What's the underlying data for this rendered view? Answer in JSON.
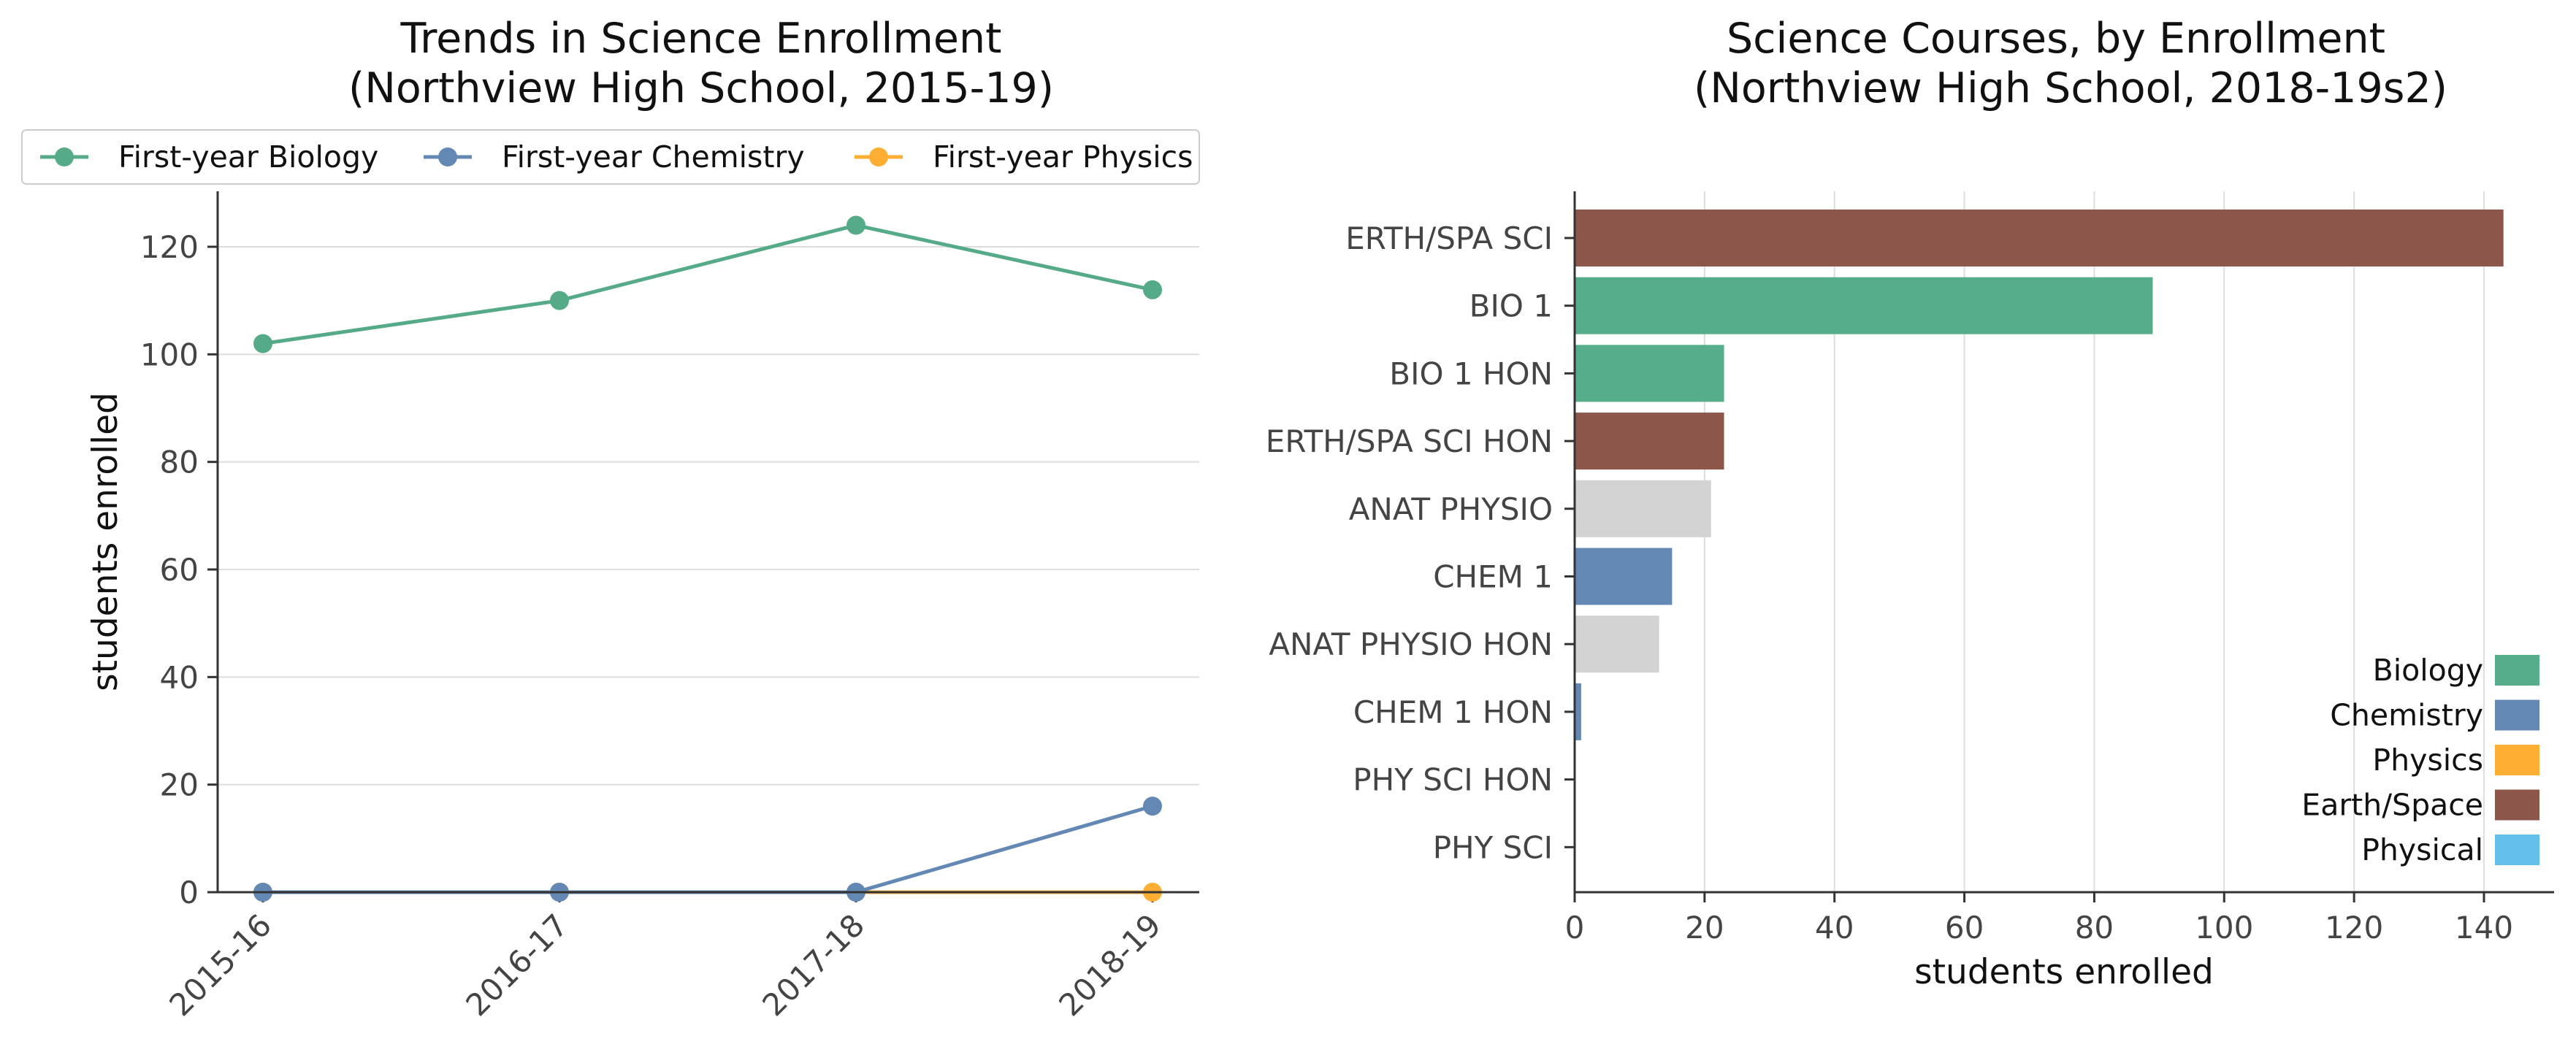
{
  "chart_data": [
    {
      "type": "line",
      "title": "Trends in Science Enrollment",
      "subtitle": "(Northview High School, 2015-19)",
      "xlabel": "",
      "ylabel": "students enrolled",
      "categories": [
        "2015-16",
        "2016-17",
        "2017-18",
        "2018-19"
      ],
      "ylim": [
        0,
        130
      ],
      "yticks": [
        "0",
        "20",
        "40",
        "60",
        "80",
        "100",
        "120"
      ],
      "grid": "horizontal",
      "legend_position": "top",
      "series": [
        {
          "name": "First-year Biology",
          "color": "#55aa88",
          "values": [
            102,
            110,
            124,
            112
          ]
        },
        {
          "name": "First-year Chemistry",
          "color": "#6388b4",
          "values": [
            0,
            0,
            0,
            16
          ]
        },
        {
          "name": "First-year Physics",
          "color": "#ffae34",
          "values": [
            0,
            0,
            0,
            0
          ]
        }
      ]
    },
    {
      "type": "bar",
      "orientation": "horizontal",
      "title": "Science Courses, by Enrollment",
      "subtitle": "(Northview High School, 2018-19s2)",
      "xlabel": "students enrolled",
      "ylabel": "",
      "xlim": [
        0,
        150
      ],
      "xticks": [
        "0",
        "20",
        "40",
        "60",
        "80",
        "100",
        "120",
        "140"
      ],
      "grid": "vertical",
      "legend_position": "lower-right",
      "categories": [
        "ERTH/SPA SCI",
        "BIO 1",
        "BIO 1 HON",
        "ERTH/SPA SCI HON",
        "ANAT PHYSIO",
        "CHEM 1",
        "ANAT PHYSIO HON",
        "CHEM 1 HON",
        "PHY SCI HON",
        "PHY SCI"
      ],
      "values": [
        143,
        89,
        23,
        23,
        21,
        15,
        13,
        1,
        0,
        0
      ],
      "bar_colors": [
        "#8c564b",
        "#55ad89",
        "#55ad89",
        "#8c564b",
        "#d3d3d3",
        "#6388b4",
        "#d3d3d3",
        "#6388b4",
        "#bbbbbb",
        "#bbbbbb"
      ],
      "legend": [
        {
          "name": "Biology",
          "color": "#55ad89"
        },
        {
          "name": "Chemistry",
          "color": "#6388b4"
        },
        {
          "name": "Physics",
          "color": "#ffae34"
        },
        {
          "name": "Earth/Space",
          "color": "#8c564b"
        },
        {
          "name": "Physical",
          "color": "#64c0ea"
        }
      ]
    }
  ]
}
